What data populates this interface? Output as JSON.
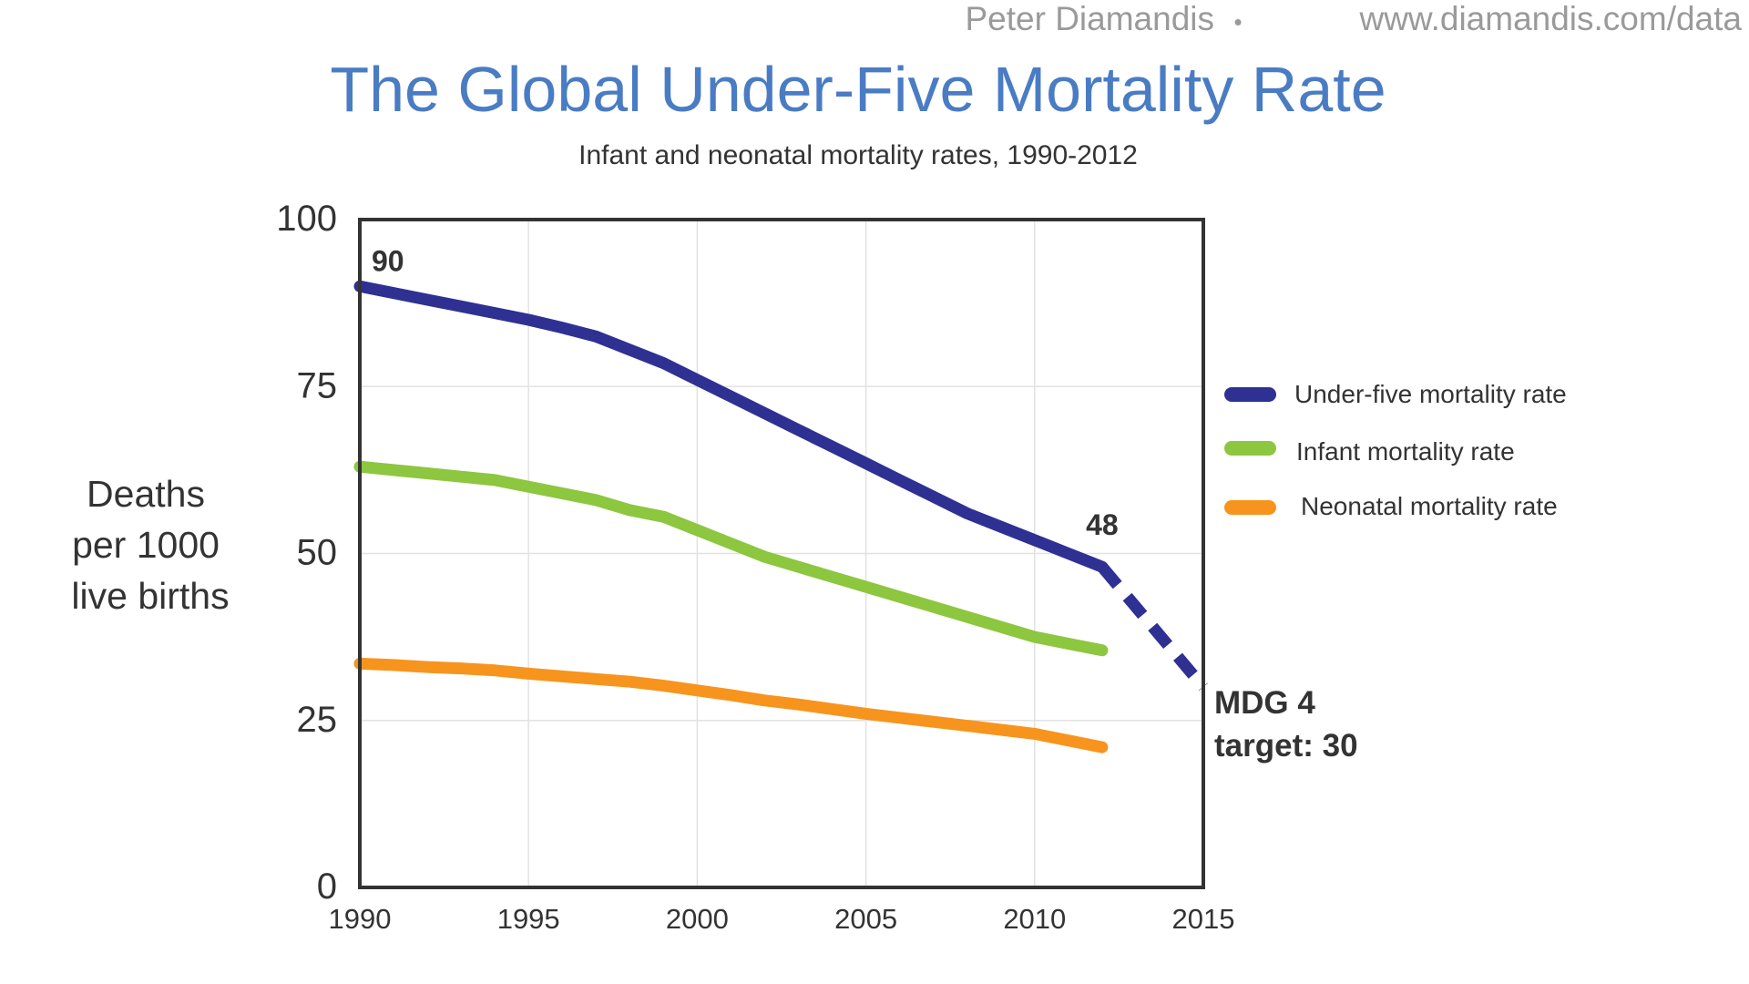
{
  "header": {
    "attribution": "Peter Diamandis",
    "separator": "•",
    "url": "www.diamandis.com/data"
  },
  "chart_data": {
    "type": "line",
    "title": "The Global Under-Five Mortality Rate",
    "subtitle": "Infant and neonatal mortality rates, 1990-2012",
    "ylabel_lines": [
      "Deaths",
      "per 1000",
      "live births"
    ],
    "xlim": [
      1990,
      2015
    ],
    "ylim": [
      0,
      100
    ],
    "x_ticks": [
      1990,
      1995,
      2000,
      2005,
      2010,
      2015
    ],
    "x_tick_labels": [
      "1990",
      "1995",
      "2000",
      "2005",
      "2010",
      "2015"
    ],
    "y_ticks": [
      0,
      25,
      50,
      75,
      100
    ],
    "y_tick_labels": [
      "0",
      "25",
      "50",
      "75",
      "100"
    ],
    "grid": true,
    "series": [
      {
        "name": "Under-five mortality rate",
        "color": "#2e3192",
        "x": [
          1990,
          1991,
          1992,
          1993,
          1994,
          1995,
          1996,
          1997,
          1998,
          1999,
          2000,
          2001,
          2002,
          2003,
          2004,
          2005,
          2006,
          2007,
          2008,
          2009,
          2010,
          2011,
          2012
        ],
        "values": [
          90,
          89,
          88,
          87,
          86,
          85,
          83.8,
          82.5,
          80.5,
          78.5,
          76,
          73.5,
          71,
          68.5,
          66,
          63.5,
          61,
          58.5,
          56,
          54,
          52,
          50,
          48
        ]
      },
      {
        "name": "Infant mortality rate",
        "color": "#8dc63f",
        "x": [
          1990,
          1991,
          1992,
          1993,
          1994,
          1995,
          1996,
          1997,
          1998,
          1999,
          2000,
          2001,
          2002,
          2003,
          2004,
          2005,
          2006,
          2007,
          2008,
          2009,
          2010,
          2011,
          2012
        ],
        "values": [
          63,
          62.5,
          62,
          61.5,
          61,
          60,
          59,
          58,
          56.5,
          55.5,
          53.5,
          51.5,
          49.5,
          48,
          46.5,
          45,
          43.5,
          42,
          40.5,
          39,
          37.5,
          36.5,
          35.5
        ]
      },
      {
        "name": "Neonatal mortality rate",
        "color": "#f7941d",
        "x": [
          1990,
          1991,
          1992,
          1993,
          1994,
          1995,
          1996,
          1997,
          1998,
          1999,
          2000,
          2001,
          2002,
          2003,
          2004,
          2005,
          2006,
          2007,
          2008,
          2009,
          2010,
          2011,
          2012
        ],
        "values": [
          33.5,
          33.3,
          33,
          32.8,
          32.5,
          32,
          31.6,
          31.2,
          30.8,
          30.2,
          29.5,
          28.8,
          28,
          27.4,
          26.7,
          26,
          25.4,
          24.8,
          24.2,
          23.6,
          23,
          22,
          21
        ]
      }
    ],
    "projection": {
      "name": "MDG 4 target",
      "x": [
        2012,
        2015
      ],
      "values": [
        48,
        30
      ],
      "style": "dashed",
      "color": "#2e3192"
    },
    "annotations": [
      {
        "text": "90",
        "x": 1990,
        "y": 90
      },
      {
        "text": "48",
        "x": 2012,
        "y": 48
      },
      {
        "text": "MDG 4",
        "x": 2015,
        "y": 30
      },
      {
        "text": "target: 30",
        "x": 2015,
        "y": 30
      }
    ],
    "legend": {
      "position": "right",
      "entries": [
        {
          "label": "Under-five mortality rate",
          "color": "#2e3192"
        },
        {
          "label": "Infant mortality rate",
          "color": "#8dc63f"
        },
        {
          "label": "Neonatal mortality rate",
          "color": "#f7941d"
        }
      ]
    }
  },
  "colors": {
    "title": "#4a7cc4",
    "text": "#333333",
    "attribution": "#9a9a9a",
    "axis": "#333333",
    "grid": "#e2e2e2"
  }
}
